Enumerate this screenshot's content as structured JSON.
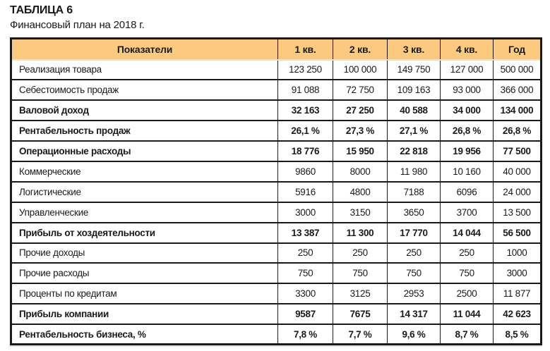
{
  "page": {
    "title": "ТАБЛИЦА 6",
    "subtitle": "Финансовый план на 2018 г."
  },
  "table": {
    "columns": [
      "Показатели",
      "1 кв.",
      "2 кв.",
      "3 кв.",
      "4 кв.",
      "Год"
    ],
    "rows": [
      {
        "label": "Реализация товара",
        "bold": false,
        "values": [
          "123 250",
          "100 000",
          "149 750",
          "127 000",
          "500 000"
        ]
      },
      {
        "label": "Себестоимость продаж",
        "bold": false,
        "values": [
          "91 088",
          "72 750",
          "109 163",
          "93 000",
          "366 000"
        ]
      },
      {
        "label": "Валовой доход",
        "bold": true,
        "values": [
          "32 163",
          "27 250",
          "40 588",
          "34 000",
          "134 000"
        ]
      },
      {
        "label": "Рентабельность продаж",
        "bold": true,
        "values": [
          "26,1 %",
          "27,3 %",
          "27,1 %",
          "26,8 %",
          "26,8 %"
        ]
      },
      {
        "label": "Операционные расходы",
        "bold": true,
        "values": [
          "18 776",
          "15 950",
          "22 818",
          "19 956",
          "77 500"
        ]
      },
      {
        "label": "Коммерческие",
        "bold": false,
        "values": [
          "9860",
          "8000",
          "11 980",
          "10 160",
          "40 000"
        ]
      },
      {
        "label": "Логистические",
        "bold": false,
        "values": [
          "5916",
          "4800",
          "7188",
          "6096",
          "24 000"
        ]
      },
      {
        "label": "Управленческие",
        "bold": false,
        "values": [
          "3000",
          "3150",
          "3650",
          "3700",
          "13 500"
        ]
      },
      {
        "label": "Прибыль от хоздеятельности",
        "bold": true,
        "values": [
          "13 387",
          "11 300",
          "17 770",
          "14 044",
          "56 500"
        ]
      },
      {
        "label": "Прочие доходы",
        "bold": false,
        "values": [
          "250",
          "250",
          "250",
          "250",
          "1000"
        ]
      },
      {
        "label": "Прочие расходы",
        "bold": false,
        "values": [
          "750",
          "750",
          "750",
          "750",
          "3000"
        ]
      },
      {
        "label": "Проценты по кредитам",
        "bold": false,
        "values": [
          "3300",
          "3125",
          "2953",
          "2500",
          "11 877"
        ]
      },
      {
        "label": "Прибыль компании",
        "bold": true,
        "values": [
          "9587",
          "7675",
          "14 317",
          "11 044",
          "42 623"
        ]
      },
      {
        "label": "Рентабельность бизнеса, %",
        "bold": true,
        "values": [
          "7,8 %",
          "7,7 %",
          "9,6 %",
          "8,7 %",
          "8,5 %"
        ]
      }
    ],
    "colors": {
      "header_bg": "#FBCA7E",
      "header_edge": "#F9E2BB",
      "border": "#1a1a1a",
      "text": "#1a1a1a"
    }
  }
}
